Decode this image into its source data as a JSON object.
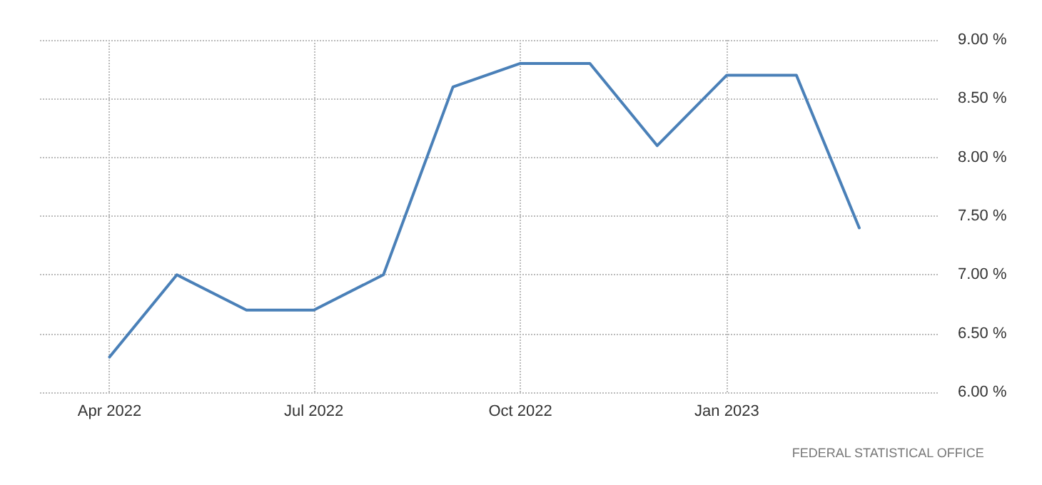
{
  "chart_data": {
    "type": "line",
    "x": [
      "2022-04",
      "2022-05",
      "2022-06",
      "2022-07",
      "2022-08",
      "2022-09",
      "2022-10",
      "2022-11",
      "2022-12",
      "2023-01",
      "2023-02",
      "2023-03"
    ],
    "series": [
      {
        "color": "#4a80b8",
        "values": [
          6.3,
          7.0,
          6.7,
          6.7,
          7.0,
          8.6,
          8.8,
          8.8,
          8.1,
          8.7,
          8.7,
          7.4
        ]
      }
    ],
    "xlim": [
      "2022-03-01",
      "2023-04-05"
    ],
    "xticks": [
      {
        "value": "2022-04",
        "label": "Apr 2022"
      },
      {
        "value": "2022-07",
        "label": "Jul 2022"
      },
      {
        "value": "2022-10",
        "label": "Oct 2022"
      },
      {
        "value": "2023-01",
        "label": "Jan 2023"
      }
    ],
    "ylim": [
      6,
      9
    ],
    "yticks": [
      {
        "value": 6,
        "label": "6.00 %"
      },
      {
        "value": 6.5,
        "label": "6.50 %"
      },
      {
        "value": 7,
        "label": "7.00 %"
      },
      {
        "value": 7.5,
        "label": "7.50 %"
      },
      {
        "value": 8,
        "label": "8.00 %"
      },
      {
        "value": 8.5,
        "label": "8.50 %"
      },
      {
        "value": 9,
        "label": "9.00 %"
      }
    ],
    "grid": true,
    "marker": "none",
    "line_style": "solid",
    "annotations": [
      "FEDERAL STATISTICAL OFFICE"
    ]
  }
}
